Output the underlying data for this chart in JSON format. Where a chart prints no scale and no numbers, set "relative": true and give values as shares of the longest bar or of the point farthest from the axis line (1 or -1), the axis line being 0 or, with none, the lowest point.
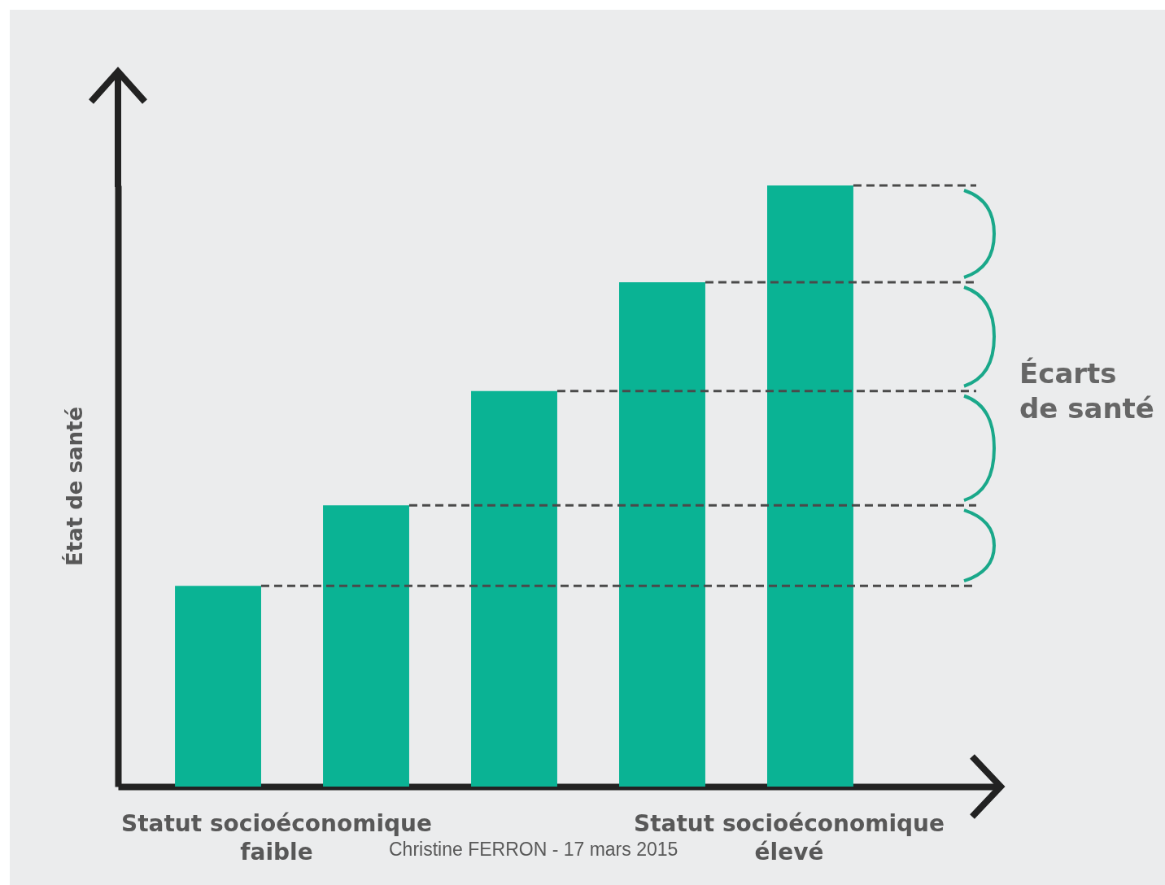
{
  "chart_data": {
    "type": "bar",
    "relative": true,
    "ylabel": "État de santé",
    "categories": [
      null,
      null,
      null,
      null,
      null
    ],
    "values": [
      0.334,
      0.468,
      0.658,
      0.839,
      1
    ],
    "color": "#0ab394",
    "ref_lines": [
      {
        "axis": "y",
        "value": 0.334,
        "line_style": "dashed",
        "color": "#4a4a4a"
      },
      {
        "axis": "y",
        "value": 0.468,
        "line_style": "dashed",
        "color": "#4a4a4a"
      },
      {
        "axis": "y",
        "value": 0.658,
        "line_style": "dashed",
        "color": "#4a4a4a"
      },
      {
        "axis": "y",
        "value": 0.839,
        "line_style": "dashed",
        "color": "#4a4a4a"
      },
      {
        "axis": "y",
        "value": 1,
        "line_style": "dashed",
        "color": "#4a4a4a"
      }
    ],
    "annotations": [
      "Écarts de santé",
      "Statut socioéconomique faible",
      "Statut socioéconomique élevé",
      "Christine FERRON - 17 mars 2015"
    ],
    "grid": false
  }
}
